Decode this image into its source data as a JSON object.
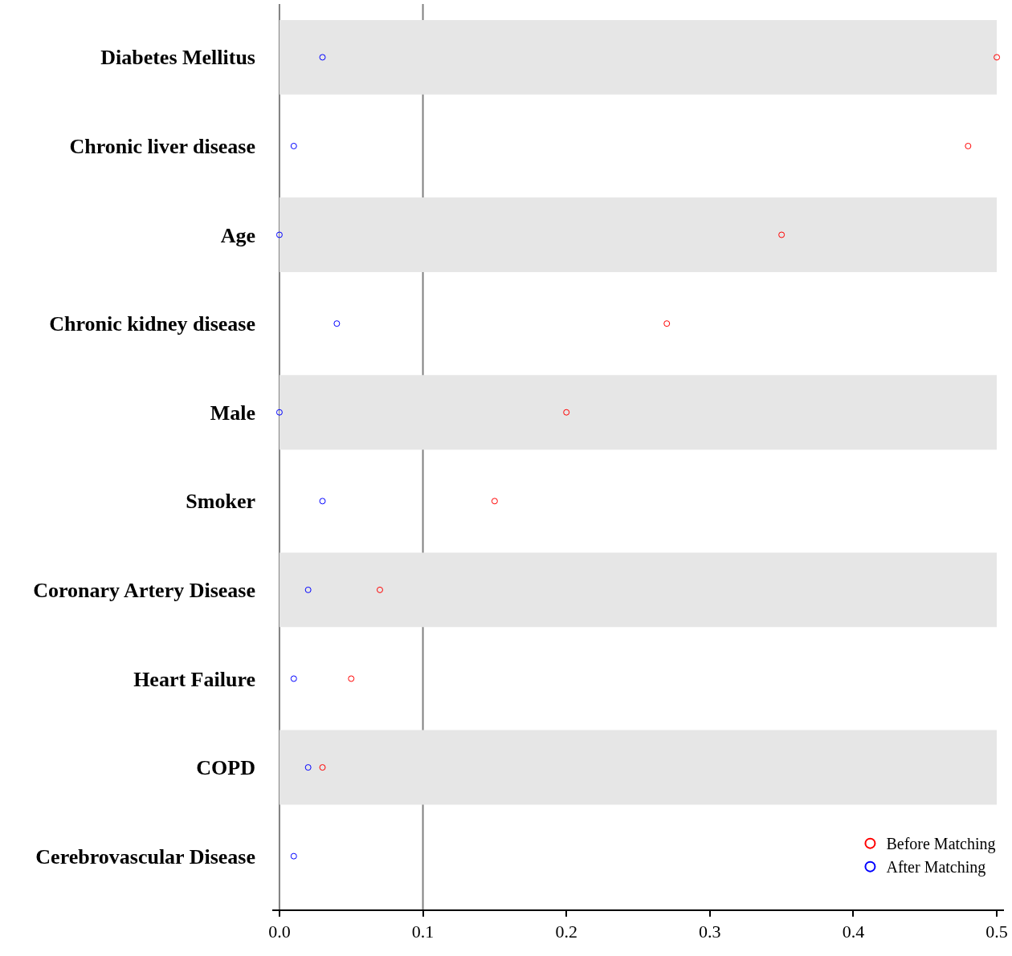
{
  "chart_data": {
    "type": "scatter",
    "categories": [
      "Diabetes Mellitus",
      "Chronic liver disease",
      "Age",
      "Chronic kidney disease",
      "Male",
      "Smoker",
      "Coronary Artery Disease",
      "Heart Failure",
      "COPD",
      "Cerebrovascular Disease"
    ],
    "orientation": "horizontal",
    "series": [
      {
        "name": "Before Matching",
        "color": "#ff0000",
        "values": [
          0.5,
          0.48,
          0.35,
          0.27,
          0.2,
          0.15,
          0.07,
          0.05,
          0.03,
          null
        ]
      },
      {
        "name": "After Matching",
        "color": "#0000ff",
        "values": [
          0.03,
          0.01,
          0.0,
          0.04,
          0.0,
          0.03,
          0.02,
          0.01,
          0.02,
          0.01
        ]
      }
    ],
    "xlim": [
      -0.005,
      0.505
    ],
    "xticks": [
      {
        "value": 0,
        "label": "0.0"
      },
      0.1,
      0.2,
      0.3,
      0.4,
      0.5
    ],
    "ref_lines": [
      {
        "axis": "x",
        "value": 0,
        "color": "#808080"
      },
      {
        "axis": "x",
        "value": 0.1,
        "color": "#808080"
      }
    ],
    "bands": [
      {
        "axis": "y",
        "from": "Diabetes Mellitus",
        "to": "Diabetes Mellitus",
        "color": "#e6e6e6"
      },
      {
        "axis": "y",
        "from": "Age",
        "to": "Age",
        "color": "#e6e6e6"
      },
      {
        "axis": "y",
        "from": "Male",
        "to": "Male",
        "color": "#e6e6e6"
      },
      {
        "axis": "y",
        "from": "Coronary Artery Disease",
        "to": "Coronary Artery Disease",
        "color": "#e6e6e6"
      },
      {
        "axis": "y",
        "from": "COPD",
        "to": "COPD",
        "color": "#e6e6e6"
      }
    ],
    "marker": "circle",
    "legend": "bottom right",
    "grid": false
  }
}
